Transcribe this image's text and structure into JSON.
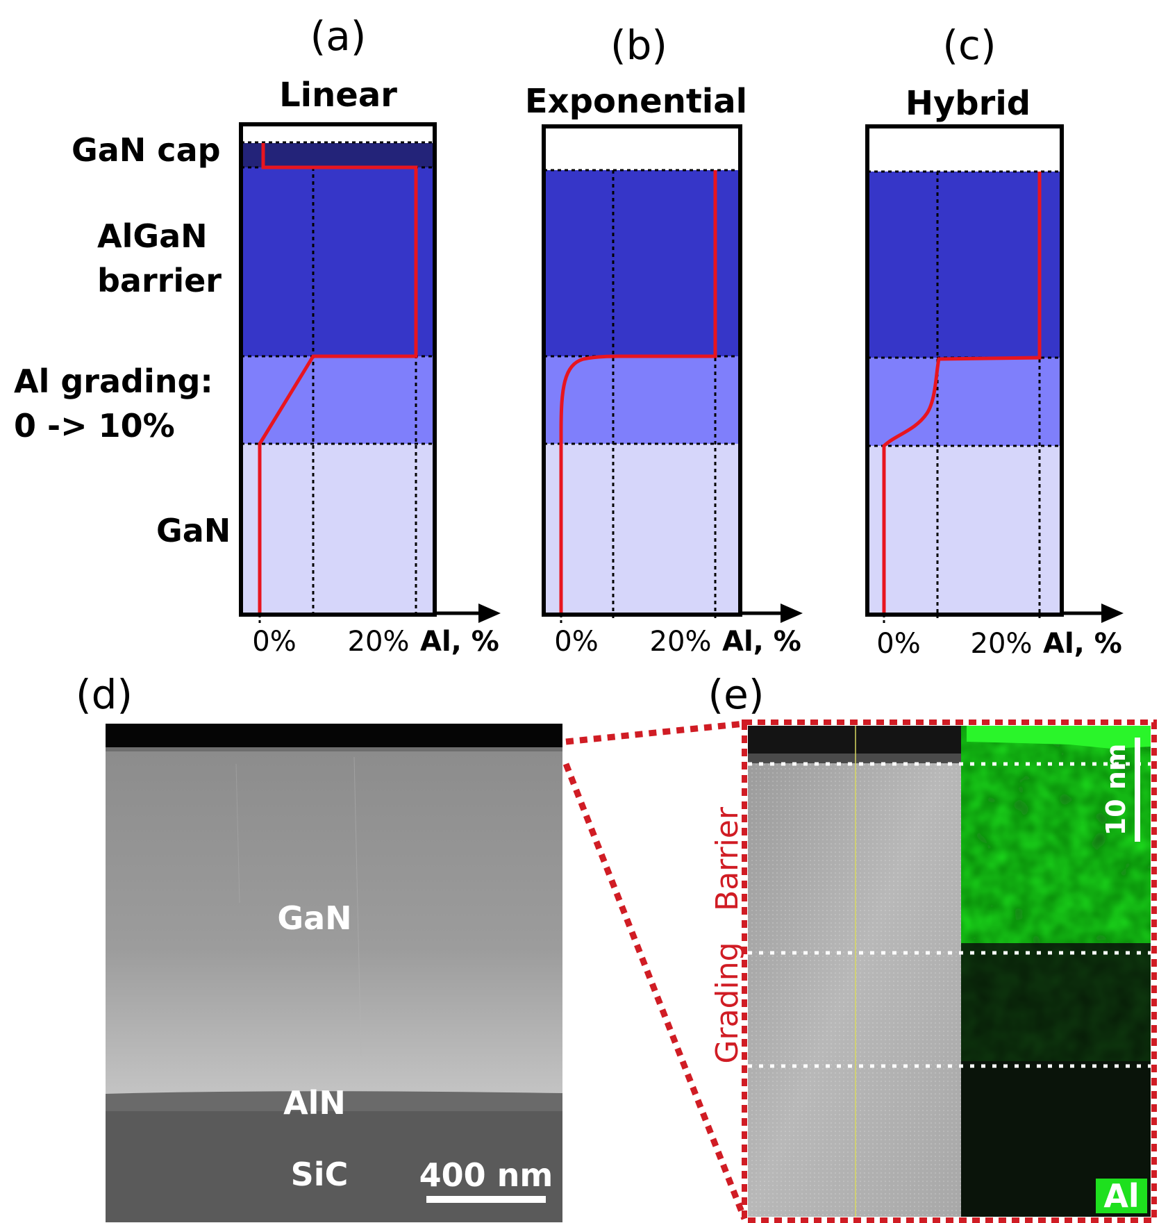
{
  "colors": {
    "gan_cap": "#232379",
    "barrier": "#3636c8",
    "grading": "#7f7ffb",
    "gan": "#d6d6fa",
    "profile": "#e8151f",
    "zoom": "#d01c24",
    "al_map": "#1ee01e"
  },
  "panels": [
    {
      "label": "(a)",
      "title": "Linear"
    },
    {
      "label": "(b)",
      "title": "Exponential"
    },
    {
      "label": "(c)",
      "title": "Hybrid"
    }
  ],
  "layers": {
    "cap": "GaN cap",
    "barrier_line1": "AlGaN",
    "barrier_line2": "barrier",
    "grading_line1": "Al grading:",
    "grading_line2": "0 -> 10%",
    "gan": "GaN"
  },
  "axis": {
    "tick0": "0%",
    "tick20": "20%",
    "label": "Al, %"
  },
  "grading_range_pct": [
    0,
    10
  ],
  "panel_d": {
    "label": "(d)",
    "gan": "GaN",
    "aln": "AlN",
    "sic": "SiC",
    "scale_bar": "400 nm"
  },
  "panel_e": {
    "label": "(e)",
    "barrier": "Barrier",
    "grading": "Grading",
    "scale_bar": "10 nm",
    "element": "Al"
  }
}
